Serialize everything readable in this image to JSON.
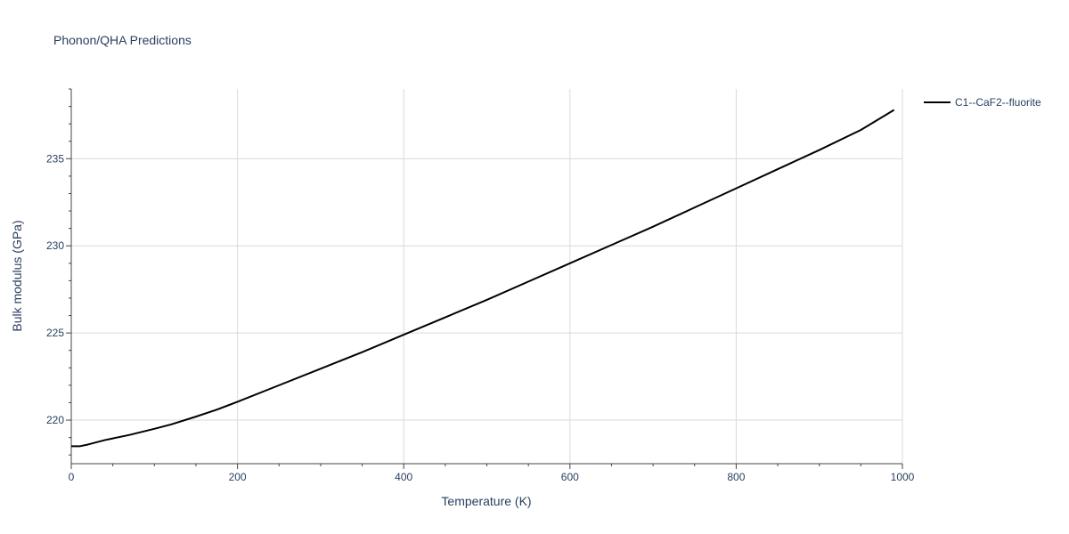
{
  "chart_data": {
    "type": "line",
    "title": "Phonon/QHA Predictions",
    "xlabel": "Temperature (K)",
    "ylabel": "Bulk modulus (GPa)",
    "xlim": [
      0,
      1000
    ],
    "ylim": [
      217.5,
      239
    ],
    "xticks": [
      0,
      200,
      400,
      600,
      800,
      1000
    ],
    "yticks": [
      220,
      225,
      230,
      235
    ],
    "grid": true,
    "legend_position": "top-right",
    "series": [
      {
        "name": "C1--CaF2--fluorite",
        "color": "#000000",
        "x": [
          0,
          10,
          20,
          40,
          70,
          100,
          120,
          150,
          175,
          200,
          250,
          300,
          350,
          400,
          450,
          500,
          550,
          600,
          650,
          700,
          750,
          800,
          850,
          900,
          950,
          990
        ],
        "y": [
          218.5,
          218.5,
          218.6,
          218.85,
          219.15,
          219.5,
          219.75,
          220.2,
          220.6,
          221.05,
          222.0,
          222.95,
          223.9,
          224.9,
          225.9,
          226.9,
          227.95,
          229.0,
          230.05,
          231.1,
          232.2,
          233.3,
          234.4,
          235.5,
          236.65,
          237.8
        ]
      }
    ]
  }
}
